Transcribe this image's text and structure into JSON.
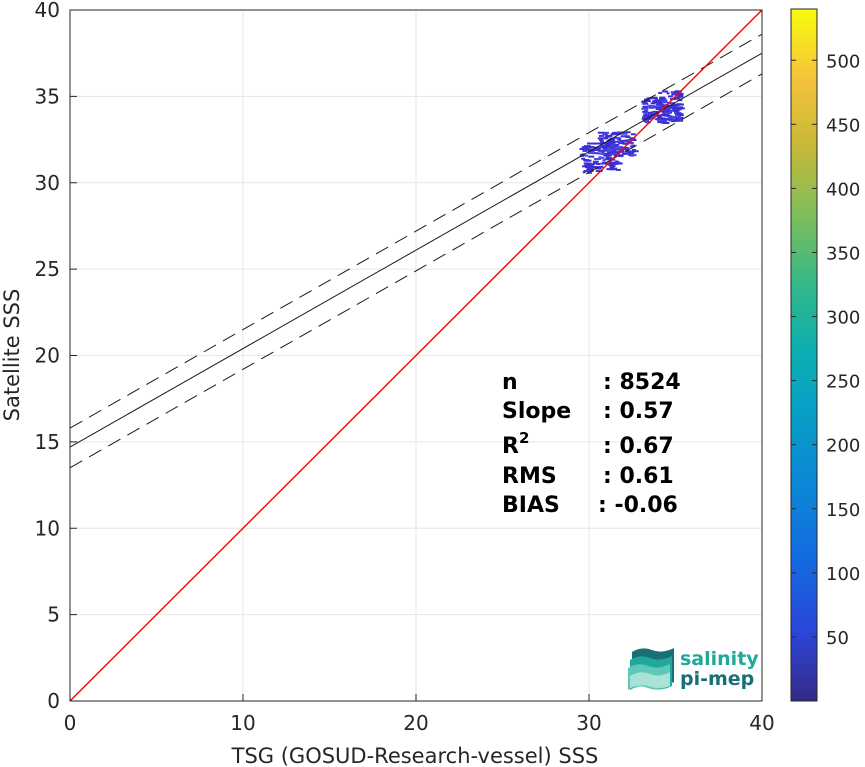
{
  "chart_data": {
    "type": "scatter",
    "subtype": "density-scatter",
    "xlabel": "TSG (GOSUD-Research-vessel) SSS",
    "ylabel": "Satellite SSS",
    "xlim": [
      0,
      40
    ],
    "ylim": [
      0,
      40
    ],
    "xticks": [
      0,
      10,
      20,
      30,
      40
    ],
    "yticks": [
      0,
      5,
      10,
      15,
      20,
      25,
      30,
      35,
      40
    ],
    "grid": true,
    "colorbar": {
      "range": [
        0,
        540
      ],
      "ticks": [
        50,
        100,
        150,
        200,
        250,
        300,
        350,
        400,
        450,
        500
      ],
      "colormap": "parula"
    },
    "identity_line": {
      "from": [
        0,
        0
      ],
      "to": [
        40,
        40
      ],
      "color": "#ff0000"
    },
    "fit_line": {
      "slope": 0.57,
      "intercept": 14.7
    },
    "fit_bounds": [
      {
        "slope": 0.57,
        "intercept": 15.8
      },
      {
        "slope": 0.57,
        "intercept": 13.5
      }
    ],
    "point_clusters": [
      {
        "x": [
          34.0,
          35.2
        ],
        "y": [
          33.6,
          35.4
        ]
      },
      {
        "x": [
          33.0,
          34.4
        ],
        "y": [
          33.5,
          35.0
        ]
      },
      {
        "x": [
          30.5,
          32.5
        ],
        "y": [
          31.6,
          33.0
        ]
      },
      {
        "x": [
          29.4,
          31.6
        ],
        "y": [
          30.6,
          32.4
        ]
      }
    ],
    "stats": [
      {
        "label": "n",
        "value": ": 8524"
      },
      {
        "label": "Slope",
        "value": ": 0.57"
      },
      {
        "label": "R",
        "sup": "2",
        "value": ": 0.67"
      },
      {
        "label": "RMS",
        "value": ": 0.61"
      },
      {
        "label": "BIAS",
        "value": ": -0.06"
      }
    ]
  },
  "logo": {
    "line1": "salinity",
    "line2": "pi-mep"
  },
  "colors": {
    "identity": "#ff0000",
    "fit": "#1a1a1a",
    "points": "#3b2fd6",
    "grid": "#e6e6e6",
    "logo_primary": "#20a99a",
    "logo_secondary": "#1a6f77"
  }
}
